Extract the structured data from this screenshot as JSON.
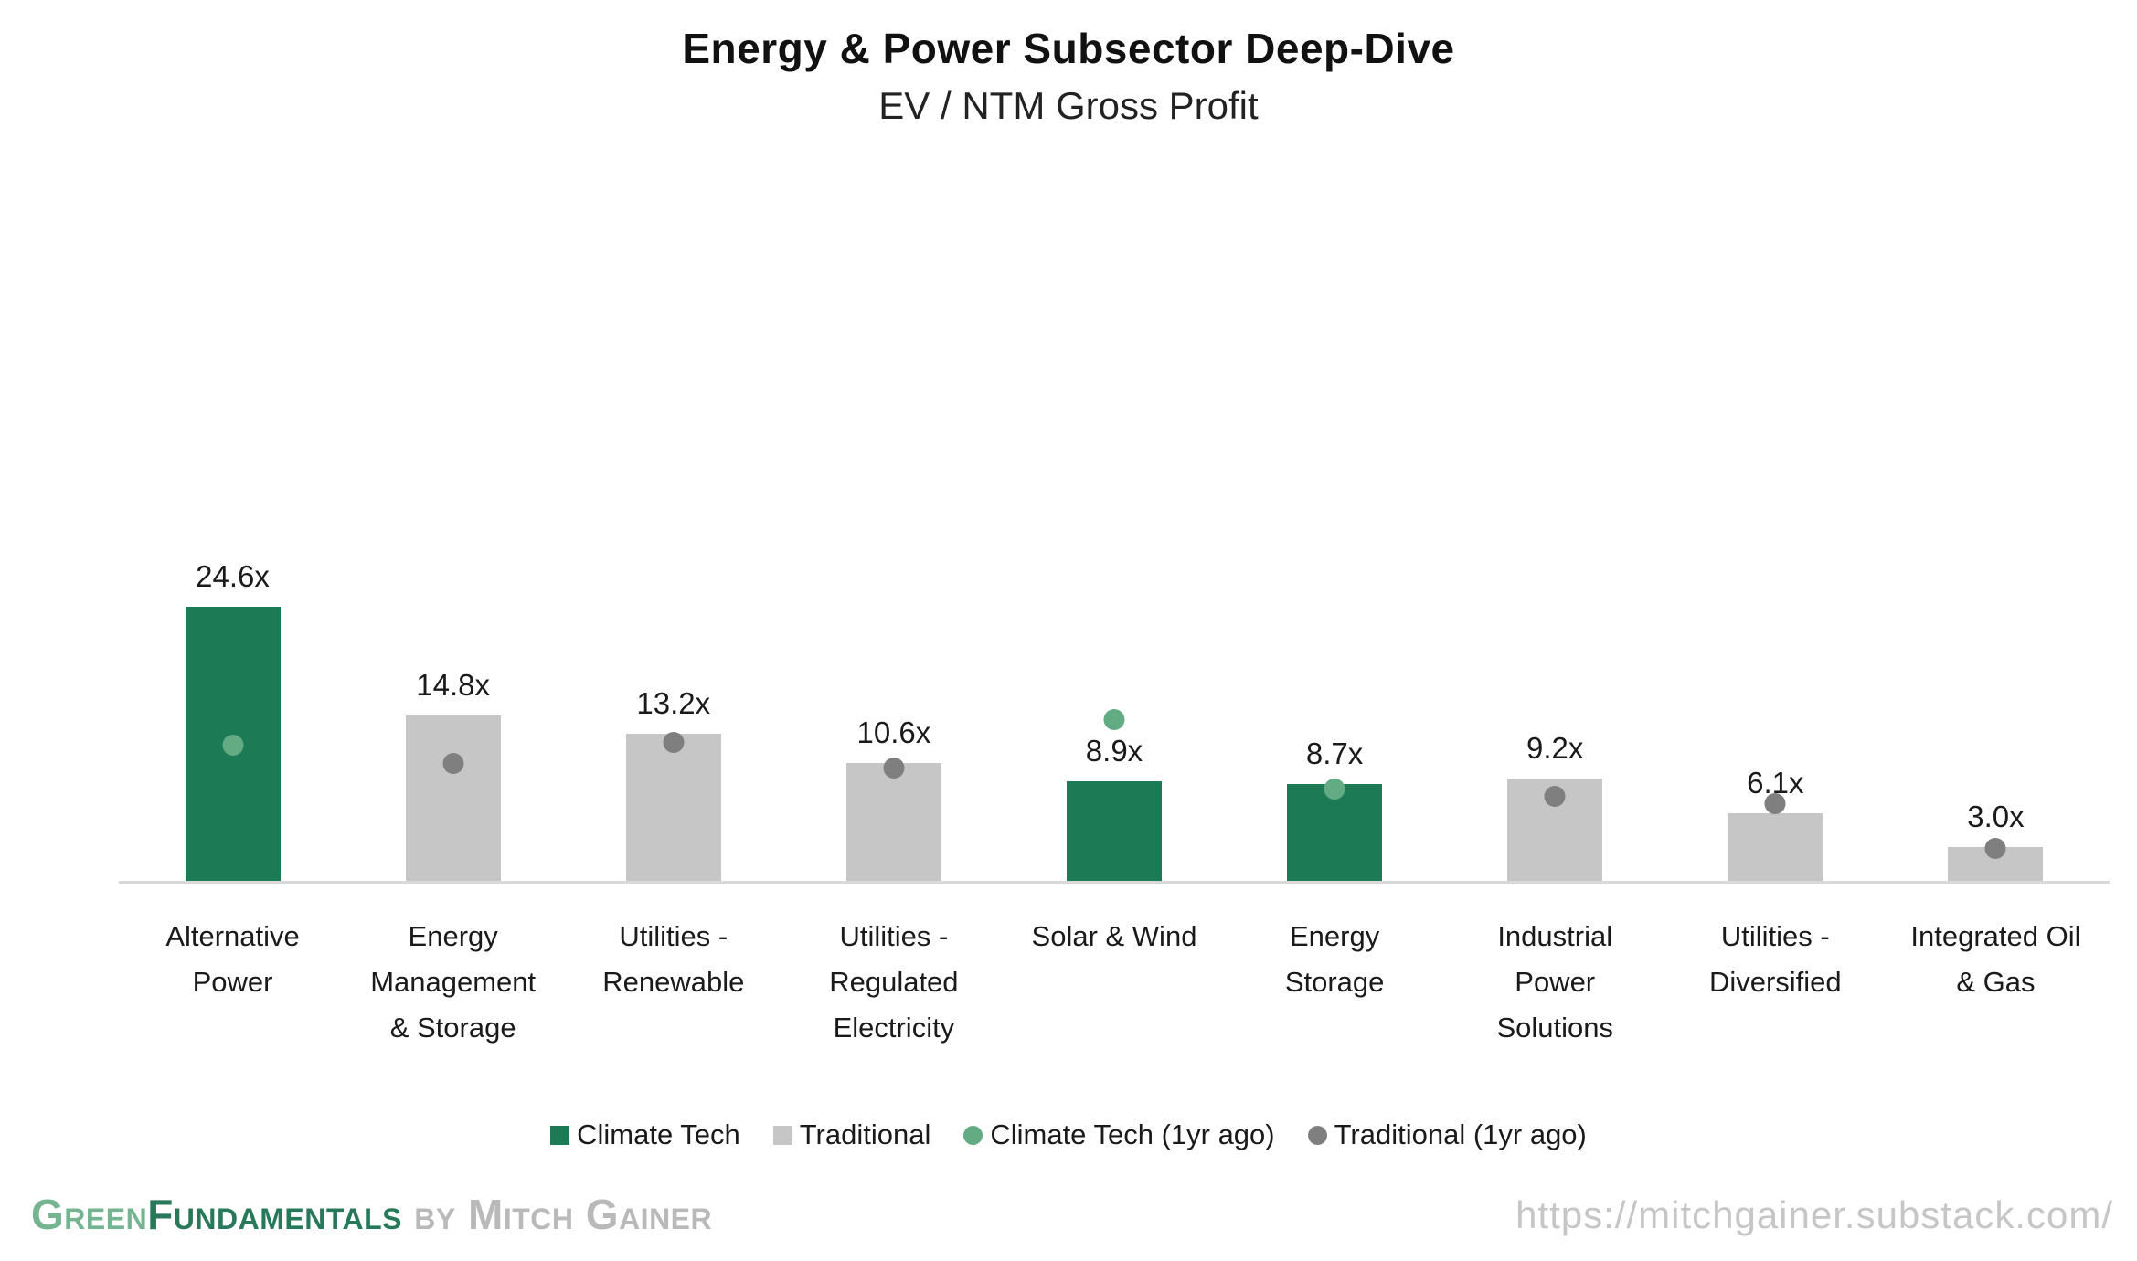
{
  "header": {
    "title": "Energy & Power Subsector Deep-Dive",
    "subtitle": "EV / NTM Gross Profit"
  },
  "chart_data": {
    "type": "bar",
    "title": "Energy & Power Subsector Deep-Dive",
    "subtitle": "EV / NTM Gross Profit",
    "unit_suffix": "x",
    "grid": false,
    "y_axis_visible": false,
    "legend_position": "bottom",
    "categories": [
      "Alternative Power",
      "Energy Management & Storage",
      "Utilities - Renewable",
      "Utilities - Regulated Electricity",
      "Solar & Wind",
      "Energy Storage",
      "Industrial Power Solutions",
      "Utilities - Diversified",
      "Integrated Oil & Gas"
    ],
    "category_lines": [
      [
        "Alternative",
        "Power"
      ],
      [
        "Energy",
        "Management",
        "& Storage"
      ],
      [
        "Utilities -",
        "Renewable"
      ],
      [
        "Utilities -",
        "Regulated",
        "Electricity"
      ],
      [
        "Solar & Wind"
      ],
      [
        "Energy",
        "Storage"
      ],
      [
        "Industrial",
        "Power",
        "Solutions"
      ],
      [
        "Utilities -",
        "Diversified"
      ],
      [
        "Integrated Oil",
        "& Gas"
      ]
    ],
    "bar_labels": [
      "24.6x",
      "14.8x",
      "13.2x",
      "10.6x",
      "8.9x",
      "8.7x",
      "9.2x",
      "6.1x",
      "3.0x"
    ],
    "series": [
      {
        "name": "Climate Tech",
        "role": "bar",
        "color": "#1c7a55",
        "values": [
          24.6,
          null,
          null,
          null,
          8.9,
          8.7,
          null,
          null,
          null
        ]
      },
      {
        "name": "Traditional",
        "role": "bar",
        "color": "#c6c6c6",
        "values": [
          null,
          14.8,
          13.2,
          10.6,
          null,
          null,
          9.2,
          6.1,
          3.0
        ]
      },
      {
        "name": "Climate Tech (1yr ago)",
        "role": "point",
        "color": "#62ab83",
        "values": [
          12.2,
          null,
          null,
          null,
          14.5,
          8.2,
          null,
          null,
          null
        ]
      },
      {
        "name": "Traditional (1yr ago)",
        "role": "point",
        "color": "#7f7f7f",
        "values": [
          null,
          10.5,
          12.4,
          10.1,
          null,
          null,
          7.6,
          6.9,
          2.9
        ]
      }
    ]
  },
  "legend": {
    "items": [
      {
        "label": "Climate Tech",
        "swatch": "square",
        "color": "#1c7a55"
      },
      {
        "label": "Traditional",
        "swatch": "square",
        "color": "#c6c6c6"
      },
      {
        "label": "Climate Tech (1yr ago)",
        "swatch": "circle",
        "color": "#62ab83"
      },
      {
        "label": "Traditional (1yr ago)",
        "swatch": "circle",
        "color": "#7f7f7f"
      }
    ]
  },
  "footer": {
    "brand_part1": "Green",
    "brand_part2": "Fundamentals",
    "byline": " by Mitch Gainer",
    "brand_part1_color": "#74b491",
    "brand_part2_color": "#27795a",
    "byline_color": "#b9b9b9",
    "url": "https://mitchgainer.substack.com/"
  }
}
